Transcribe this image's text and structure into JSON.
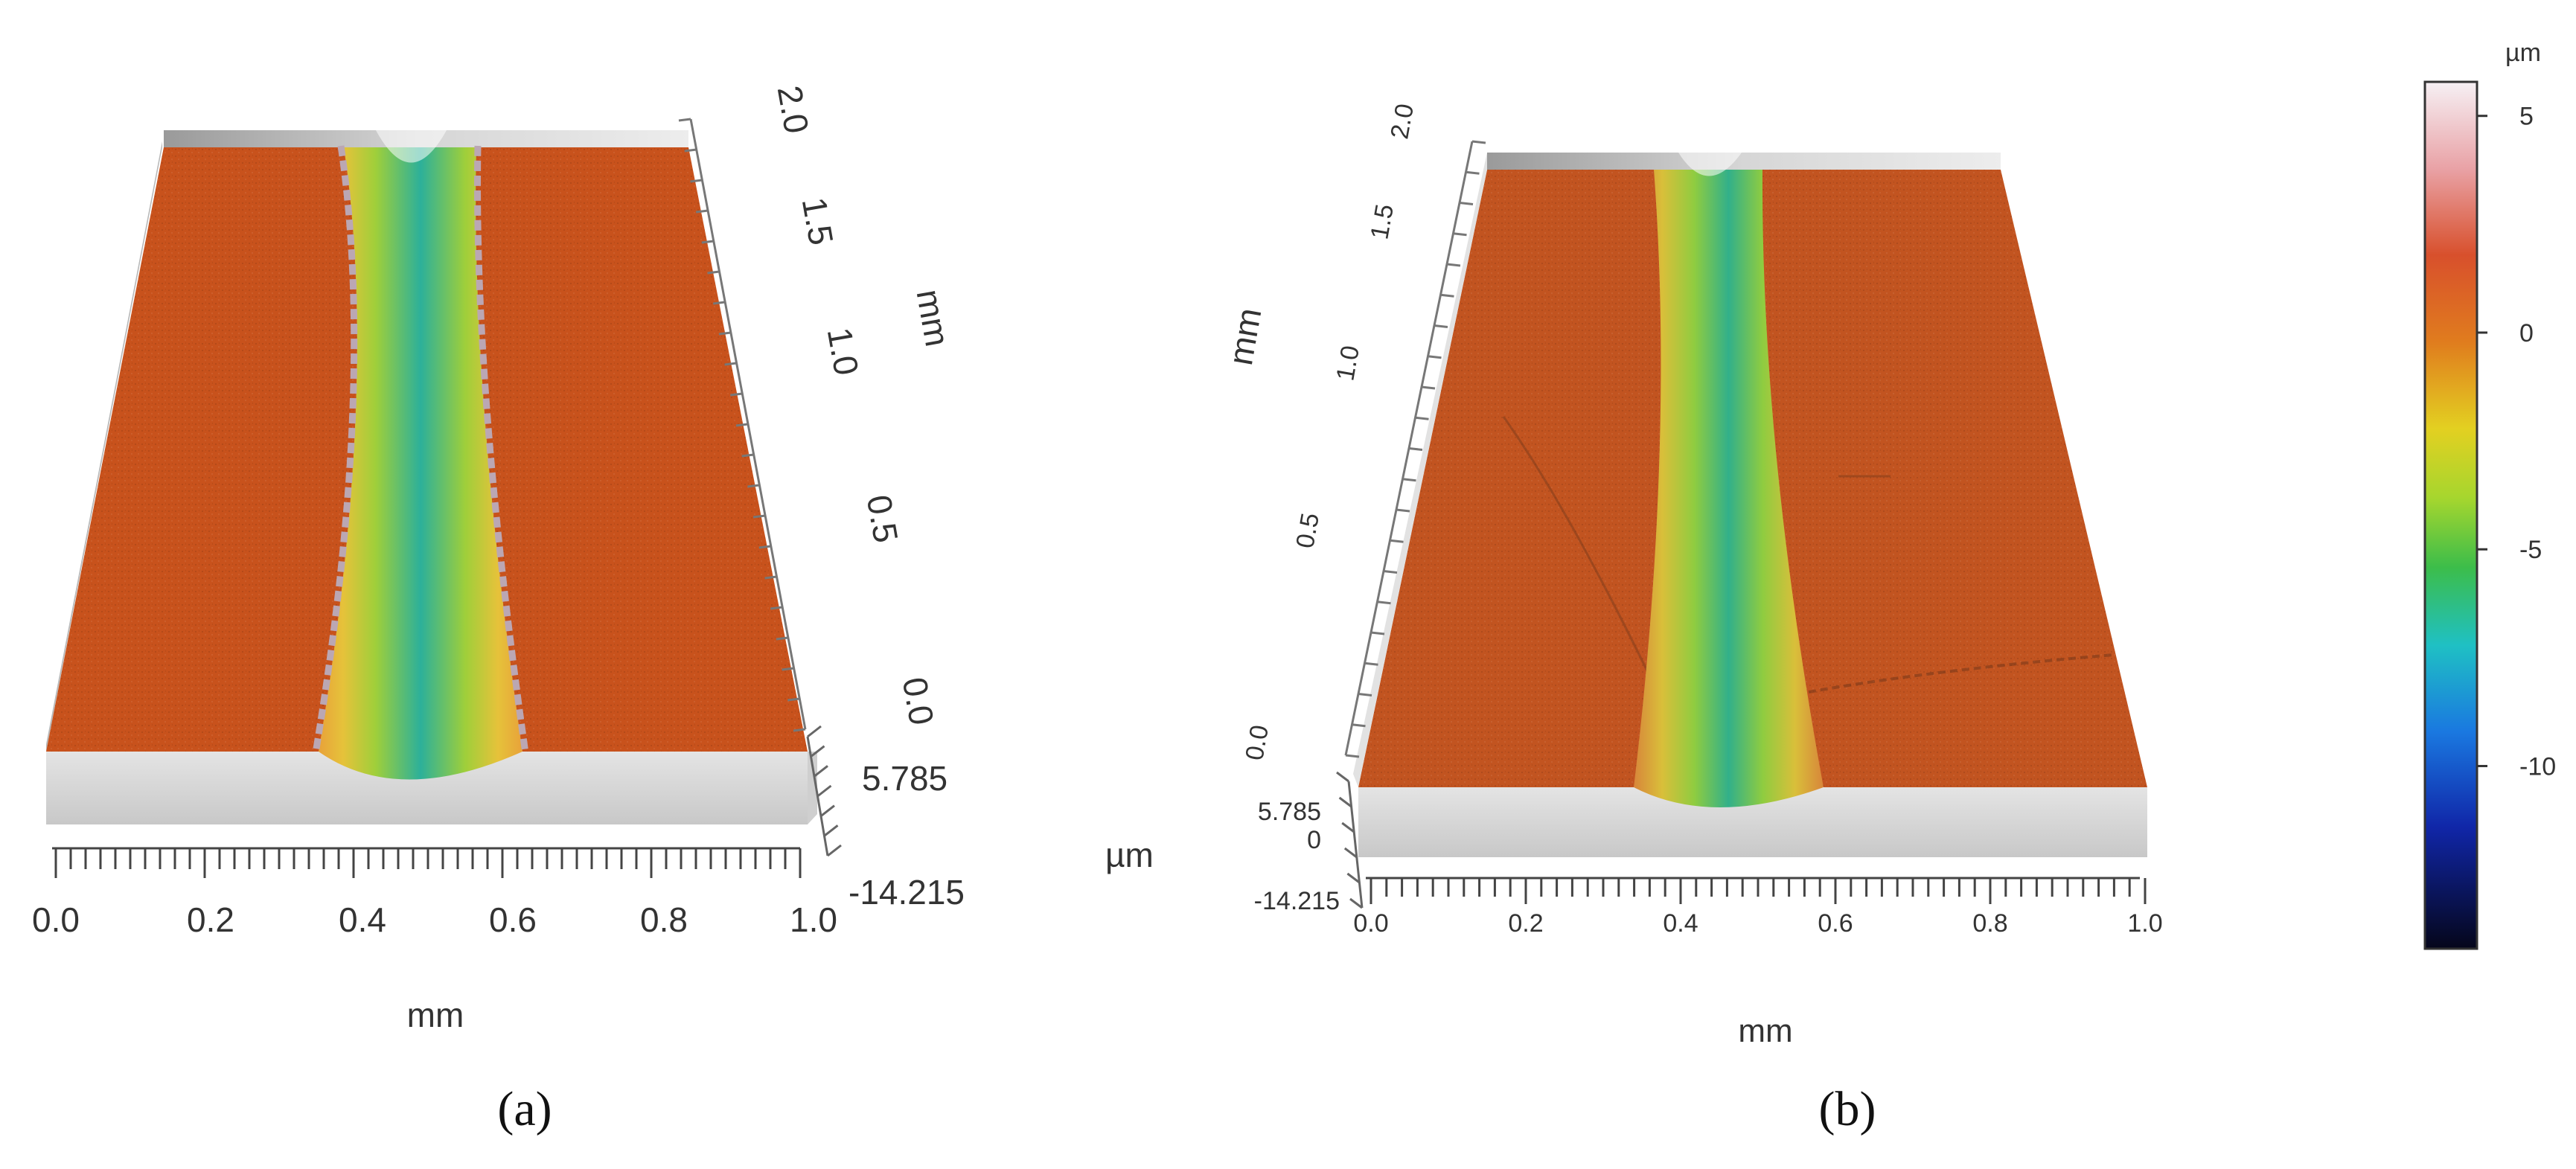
{
  "panel_a": {
    "caption": "(a)",
    "x_unit": "mm",
    "y_unit": "mm",
    "z_unit": "µm",
    "x_ticks": [
      "0.0",
      "0.2",
      "0.4",
      "0.6",
      "0.8",
      "1.0"
    ],
    "y_ticks": [
      "0.0",
      "0.5",
      "1.0",
      "1.5",
      "2.0"
    ],
    "z_ticks": [
      "5.785",
      "-14.215"
    ]
  },
  "panel_b": {
    "caption": "(b)",
    "x_unit": "mm",
    "y_unit": "mm",
    "x_ticks": [
      "0.0",
      "0.2",
      "0.4",
      "0.6",
      "0.8",
      "1.0"
    ],
    "y_ticks": [
      "0.0",
      "0.5",
      "1.0",
      "1.5",
      "2.0"
    ],
    "z_ticks": [
      "5.785",
      "0",
      "-14.215"
    ]
  },
  "colorbar": {
    "unit": "µm",
    "ticks": [
      "5",
      "0",
      "-5",
      "-10"
    ],
    "tick_values": [
      5,
      0,
      -5,
      -10
    ],
    "range": [
      -14.215,
      5.785
    ]
  },
  "colors": {
    "surface": "#c8521c",
    "groove_center": "#2cb09a",
    "groove_mid": "#9fcf3a",
    "groove_edge": "#e6c23a",
    "base": "#dcdcdc"
  }
}
